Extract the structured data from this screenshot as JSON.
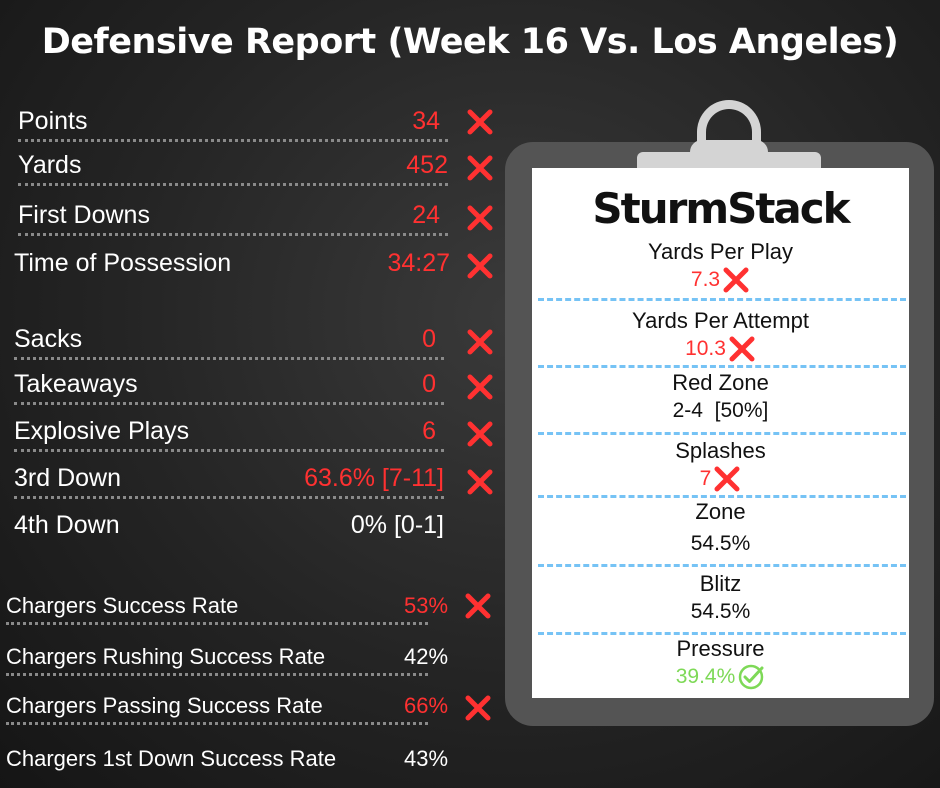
{
  "title": "Defensive Report (Week 16 Vs. Los Angeles)",
  "group1": [
    {
      "label": "Points",
      "value": "34",
      "color": "red",
      "x": true
    },
    {
      "label": "Yards",
      "value": "452",
      "color": "red",
      "x": true
    },
    {
      "label": "First Downs",
      "value": "24",
      "color": "red",
      "x": true
    },
    {
      "label": "Time of Possession",
      "value": "34:27",
      "color": "red",
      "x": true
    }
  ],
  "group2": [
    {
      "label": "Sacks",
      "value": "0",
      "color": "red",
      "x": true
    },
    {
      "label": "Takeaways",
      "value": "0",
      "color": "red",
      "x": true
    },
    {
      "label": "Explosive Plays",
      "value": "6",
      "color": "red",
      "x": true
    },
    {
      "label": "3rd Down",
      "value": "63.6% [7-11]",
      "color": "red",
      "x": true
    },
    {
      "label": "4th Down",
      "value": "0% [0-1]",
      "color": "white",
      "x": false
    }
  ],
  "group3": [
    {
      "label": "Chargers Success Rate",
      "value": "53%",
      "color": "red",
      "x": true
    },
    {
      "label": "Chargers Rushing Success Rate",
      "value": "42%",
      "color": "white",
      "x": false
    },
    {
      "label": "Chargers Passing Success Rate",
      "value": "66%",
      "color": "red",
      "x": true
    },
    {
      "label": "Chargers 1st Down Success Rate",
      "value": "43%",
      "color": "white",
      "x": false
    }
  ],
  "clipboard": {
    "logo": "SturmStack",
    "stats": [
      {
        "label": "Yards Per Play",
        "value": "7.3",
        "status": "bad"
      },
      {
        "label": "Yards Per Attempt",
        "value": "10.3",
        "status": "bad"
      },
      {
        "label": "Red Zone",
        "value": "2-4  [50%]",
        "status": "neutral"
      },
      {
        "label": "Splashes",
        "value": "7",
        "status": "bad"
      },
      {
        "label": "Zone",
        "value": "54.5%",
        "status": "neutral"
      },
      {
        "label": "Blitz",
        "value": "54.5%",
        "status": "neutral"
      },
      {
        "label": "Pressure",
        "value": "39.4%",
        "status": "good"
      }
    ]
  },
  "colors": {
    "bad": "#ff3131",
    "good": "#7ed957",
    "separator": "#76c3f5",
    "background": "#2b2b2b"
  },
  "icons": {
    "bad": "x-mark-icon",
    "good": "check-circle-icon"
  }
}
